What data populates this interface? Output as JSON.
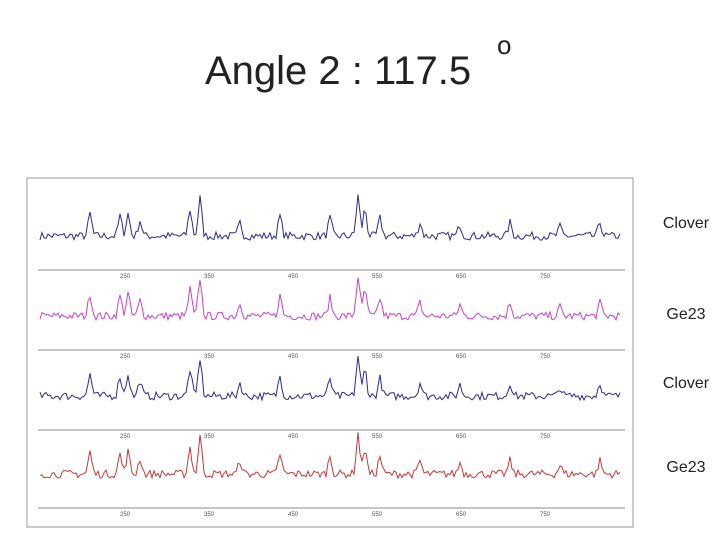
{
  "header": {
    "title": "Angle 2 : 117.5",
    "superscript": "o"
  },
  "panels": [
    {
      "label": "Clover",
      "axis_labels": [
        "250",
        "350",
        "450",
        "550",
        "650",
        "750"
      ]
    },
    {
      "label": "Ge23",
      "axis_labels": [
        "250",
        "350",
        "450",
        "550",
        "650",
        "750"
      ]
    },
    {
      "label": "Clover",
      "axis_labels": [
        "250",
        "350",
        "450",
        "550",
        "650",
        "750"
      ]
    },
    {
      "label": "Ge23",
      "axis_labels": [
        "250",
        "350",
        "450",
        "550",
        "650",
        "750"
      ]
    }
  ]
}
